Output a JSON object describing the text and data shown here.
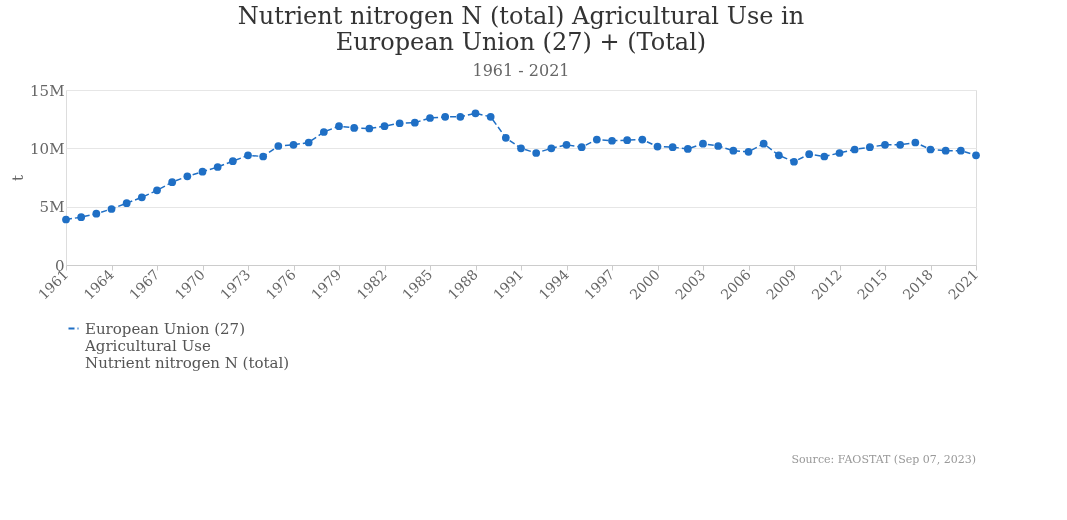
{
  "chart_data": {
    "type": "line",
    "title": "Nutrient nitrogen N (total) Agricultural Use in European Union (27) + (Total)",
    "subtitle": "1961 - 2021",
    "ylabel": "t",
    "x": [
      1961,
      1962,
      1963,
      1964,
      1965,
      1966,
      1967,
      1968,
      1969,
      1970,
      1971,
      1972,
      1973,
      1974,
      1975,
      1976,
      1977,
      1978,
      1979,
      1980,
      1981,
      1982,
      1983,
      1984,
      1985,
      1986,
      1987,
      1988,
      1989,
      1990,
      1991,
      1992,
      1993,
      1994,
      1995,
      1996,
      1997,
      1998,
      1999,
      2000,
      2001,
      2002,
      2003,
      2004,
      2005,
      2006,
      2007,
      2008,
      2009,
      2010,
      2011,
      2012,
      2013,
      2014,
      2015,
      2016,
      2017,
      2018,
      2019,
      2020,
      2021
    ],
    "series": [
      {
        "name": "European Union (27)\nAgricultural Use\nNutrient nitrogen N (total)",
        "color": "#1f6fc5",
        "values": [
          3900000,
          4100000,
          4400000,
          4800000,
          5300000,
          5800000,
          6400000,
          7100000,
          7600000,
          8000000,
          8400000,
          8900000,
          9400000,
          9300000,
          10200000,
          10300000,
          10500000,
          11400000,
          11900000,
          11750000,
          11700000,
          11900000,
          12150000,
          12200000,
          12600000,
          12700000,
          12700000,
          13000000,
          12700000,
          10900000,
          10000000,
          9600000,
          10000000,
          10300000,
          10100000,
          10750000,
          10650000,
          10700000,
          10750000,
          10150000,
          10100000,
          9950000,
          10400000,
          10200000,
          9800000,
          9700000,
          10400000,
          9400000,
          8850000,
          9500000,
          9300000,
          9600000,
          9900000,
          10100000,
          10300000,
          10300000,
          10500000,
          9900000,
          9800000,
          9800000,
          9400000
        ]
      }
    ],
    "xlim": [
      1961,
      2021
    ],
    "xticks": [
      1961,
      1964,
      1967,
      1970,
      1973,
      1976,
      1979,
      1982,
      1985,
      1988,
      1991,
      1994,
      1997,
      2000,
      2003,
      2006,
      2009,
      2012,
      2015,
      2018,
      2021
    ],
    "ylim": [
      0,
      15000000
    ],
    "yticks": [
      {
        "value": 0,
        "label": "0"
      },
      {
        "value": 5000000,
        "label": "5M"
      },
      {
        "value": 10000000,
        "label": "10M"
      },
      {
        "value": 15000000,
        "label": "15M"
      }
    ],
    "grid": "y",
    "legend": "bottom",
    "marker": "circle",
    "line_style": "dashed",
    "annotations": [
      "Source: FAOSTAT (Sep 07, 2023)"
    ]
  }
}
